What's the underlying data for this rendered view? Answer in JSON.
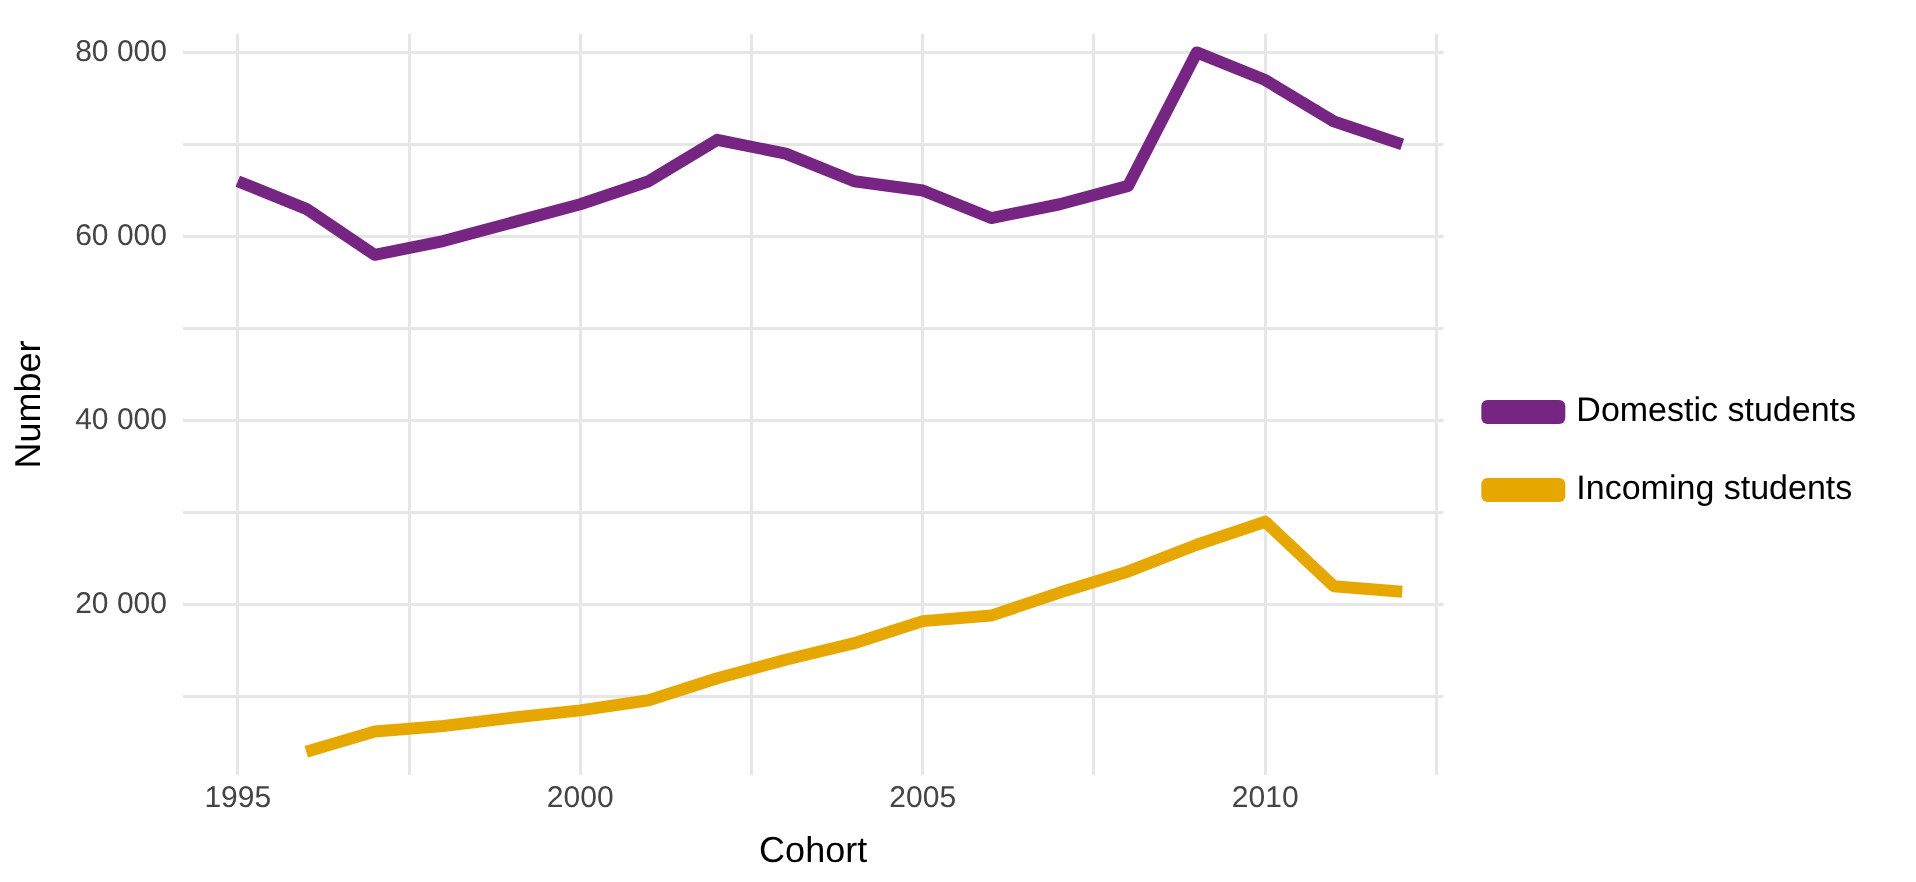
{
  "chart_data": {
    "type": "line",
    "xlabel": "Cohort",
    "ylabel": "Number",
    "xlim": [
      1994.2,
      2012.6
    ],
    "xticks": [
      1995,
      {
        "value": 1997.5,
        "label": null
      },
      2000,
      {
        "value": 2002.5,
        "label": null
      },
      2005,
      {
        "value": 2007.5,
        "label": null
      },
      2010,
      {
        "value": 2012.5,
        "label": null
      }
    ],
    "ylim": [
      1500,
      82000
    ],
    "yticks": [
      {
        "value": 10000,
        "label": null
      },
      {
        "value": 20000,
        "label": "20 000"
      },
      {
        "value": 30000,
        "label": null
      },
      {
        "value": 40000,
        "label": "40 000"
      },
      {
        "value": 50000,
        "label": null
      },
      {
        "value": 60000,
        "label": "60 000"
      },
      {
        "value": 70000,
        "label": null
      },
      {
        "value": 80000,
        "label": "80 000"
      }
    ],
    "grid": true,
    "legend": "right",
    "marker": "none",
    "line_style": "solid",
    "series": [
      {
        "name": "Domestic students",
        "color": "#772583",
        "x": [
          1995,
          1996,
          1997,
          1998,
          1999,
          2000,
          2001,
          2002,
          2003,
          2004,
          2005,
          2006,
          2007,
          2008,
          2009,
          2010,
          2011,
          2012
        ],
        "values": [
          66000,
          63000,
          58000,
          59500,
          61500,
          63500,
          66000,
          70500,
          69000,
          66000,
          65000,
          62000,
          63500,
          65500,
          80000,
          77000,
          72500,
          70000
        ]
      },
      {
        "name": "Incoming students",
        "color": "#e6a800",
        "x": [
          1996,
          1997,
          1998,
          1999,
          2000,
          2001,
          2002,
          2003,
          2004,
          2005,
          2006,
          2007,
          2008,
          2009,
          2010,
          2011,
          2012
        ],
        "values": [
          4000,
          6200,
          6800,
          7700,
          8500,
          9600,
          12000,
          14000,
          15800,
          18200,
          18800,
          21300,
          23600,
          26500,
          29000,
          22000,
          21400
        ]
      }
    ]
  }
}
